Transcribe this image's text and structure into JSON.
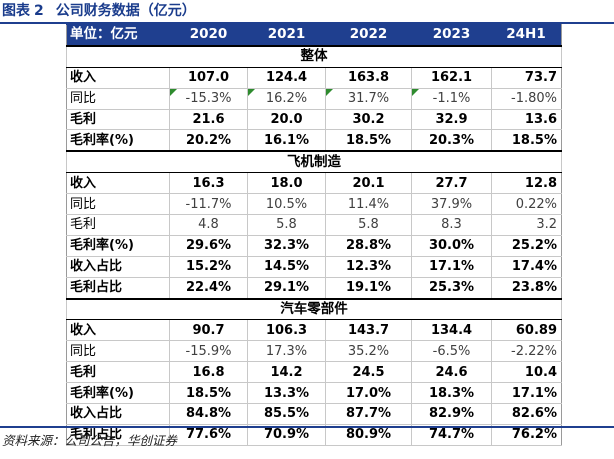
{
  "figure": {
    "label": "图表",
    "number": "2",
    "title": "公司财务数据（亿元）"
  },
  "table": {
    "header": [
      "单位：亿元",
      "2020",
      "2021",
      "2022",
      "2023",
      "24H1"
    ],
    "sections": [
      {
        "name": "整体",
        "rows": [
          {
            "label": "收入",
            "values": [
              "107.0",
              "124.4",
              "163.8",
              "162.1",
              "73.7"
            ],
            "bold": true
          },
          {
            "label": "同比",
            "values": [
              "-15.3%",
              "16.2%",
              "31.7%",
              "-1.1%",
              "-1.80%"
            ],
            "bold": false
          },
          {
            "label": "毛利",
            "values": [
              "21.6",
              "20.0",
              "30.2",
              "32.9",
              "13.6"
            ],
            "bold": true
          },
          {
            "label": "毛利率(%)",
            "values": [
              "20.2%",
              "16.1%",
              "18.5%",
              "20.3%",
              "18.5%"
            ],
            "bold": true
          }
        ]
      },
      {
        "name": "飞机制造",
        "rows": [
          {
            "label": "收入",
            "values": [
              "16.3",
              "18.0",
              "20.1",
              "27.7",
              "12.8"
            ],
            "bold": true
          },
          {
            "label": "同比",
            "values": [
              "-11.7%",
              "10.5%",
              "11.4%",
              "37.9%",
              "0.22%"
            ],
            "bold": false
          },
          {
            "label": "毛利",
            "values": [
              "4.8",
              "5.8",
              "5.8",
              "8.3",
              "3.2"
            ],
            "bold": false
          },
          {
            "label": "毛利率(%)",
            "values": [
              "29.6%",
              "32.3%",
              "28.8%",
              "30.0%",
              "25.2%"
            ],
            "bold": true
          },
          {
            "label": "收入占比",
            "values": [
              "15.2%",
              "14.5%",
              "12.3%",
              "17.1%",
              "17.4%"
            ],
            "bold": true
          },
          {
            "label": "毛利占比",
            "values": [
              "22.4%",
              "29.1%",
              "19.1%",
              "25.3%",
              "23.8%"
            ],
            "bold": true
          }
        ]
      },
      {
        "name": "汽车零部件",
        "rows": [
          {
            "label": "收入",
            "values": [
              "90.7",
              "106.3",
              "143.7",
              "134.4",
              "60.89"
            ],
            "bold": true
          },
          {
            "label": "同比",
            "values": [
              "-15.9%",
              "17.3%",
              "35.2%",
              "-6.5%",
              "-2.22%"
            ],
            "bold": false
          },
          {
            "label": "毛利",
            "values": [
              "16.8",
              "14.2",
              "24.5",
              "24.6",
              "10.4"
            ],
            "bold": true
          },
          {
            "label": "毛利率(%)",
            "values": [
              "18.5%",
              "13.3%",
              "17.0%",
              "18.3%",
              "17.1%"
            ],
            "bold": true
          },
          {
            "label": "收入占比",
            "values": [
              "84.8%",
              "85.5%",
              "87.7%",
              "82.9%",
              "82.6%"
            ],
            "bold": true
          },
          {
            "label": "毛利占比",
            "values": [
              "77.6%",
              "70.9%",
              "80.9%",
              "74.7%",
              "76.2%"
            ],
            "bold": true
          }
        ]
      }
    ]
  },
  "source": "资料来源：公司公告，华创证券",
  "colors": {
    "header_bg": "#1f3f8f",
    "title_text": "#1a3c8c",
    "indicator": "#2e8b2e"
  }
}
